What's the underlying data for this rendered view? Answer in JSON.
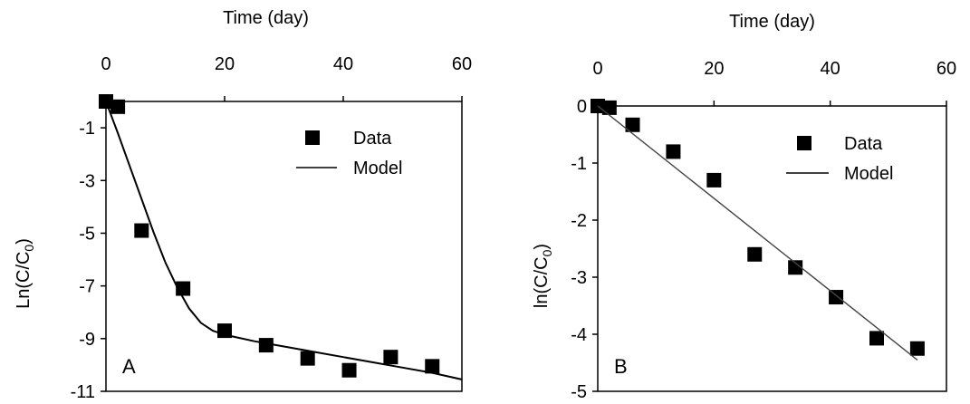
{
  "chart_data": [
    {
      "panel_label": "A",
      "type": "scatter",
      "xlabel": "Time (day)",
      "ylabel": "Ln(C/C0)",
      "xlim": [
        0,
        60
      ],
      "ylim": [
        -11,
        0
      ],
      "x_ticks": [
        "0",
        "20",
        "40",
        "60"
      ],
      "y_ticks": [
        "-1",
        "-3",
        "-5",
        "-7",
        "-9",
        "-11"
      ],
      "legend": {
        "position": "top-right",
        "entries": [
          "Data",
          "Model"
        ]
      },
      "series": [
        {
          "name": "Data",
          "type": "scatter",
          "x": [
            0,
            2,
            6,
            13,
            20,
            27,
            34,
            41,
            48,
            55
          ],
          "y": [
            0.0,
            -0.2,
            -4.9,
            -7.1,
            -8.7,
            -9.25,
            -9.75,
            -10.2,
            -9.7,
            -10.05
          ]
        },
        {
          "name": "Model",
          "type": "line",
          "x": [
            0,
            2,
            4,
            6,
            8,
            10,
            12,
            14,
            16,
            18,
            20,
            25,
            30,
            35,
            40,
            45,
            50,
            55,
            60
          ],
          "y": [
            0.0,
            -1.2,
            -2.45,
            -3.7,
            -4.95,
            -6.1,
            -7.05,
            -7.85,
            -8.4,
            -8.7,
            -8.85,
            -9.1,
            -9.3,
            -9.5,
            -9.7,
            -9.9,
            -10.1,
            -10.3,
            -10.55
          ]
        }
      ]
    },
    {
      "panel_label": "B",
      "type": "scatter",
      "xlabel": "Time (day)",
      "ylabel": "ln(C/C0)",
      "xlim": [
        0,
        60
      ],
      "ylim": [
        -5,
        0
      ],
      "x_ticks": [
        "0",
        "20",
        "40",
        "60"
      ],
      "y_ticks": [
        "0",
        "-1",
        "-2",
        "-3",
        "-4",
        "-5"
      ],
      "legend": {
        "position": "top-right",
        "entries": [
          "Data",
          "Model"
        ]
      },
      "series": [
        {
          "name": "Data",
          "type": "scatter",
          "x": [
            0,
            2,
            6,
            13,
            20,
            27,
            34,
            41,
            48,
            55
          ],
          "y": [
            0.0,
            -0.03,
            -0.33,
            -0.8,
            -1.3,
            -2.6,
            -2.83,
            -3.35,
            -4.07,
            -4.25
          ]
        },
        {
          "name": "Model",
          "type": "line",
          "x": [
            0,
            55
          ],
          "y": [
            0.0,
            -4.45
          ]
        }
      ]
    }
  ]
}
